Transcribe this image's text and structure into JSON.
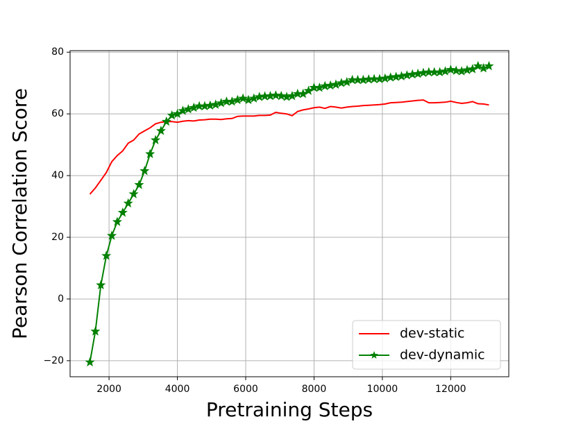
{
  "chart_data": {
    "type": "line",
    "xlabel": "Pretraining Steps",
    "ylabel": "Pearson Correlation Score",
    "x": [
      1440,
      1600,
      1760,
      1920,
      2080,
      2240,
      2400,
      2560,
      2720,
      2880,
      3040,
      3200,
      3360,
      3520,
      3680,
      3840,
      4000,
      4160,
      4320,
      4480,
      4640,
      4800,
      4960,
      5120,
      5280,
      5440,
      5600,
      5760,
      5920,
      6080,
      6240,
      6400,
      6560,
      6720,
      6880,
      7040,
      7200,
      7360,
      7520,
      7680,
      7840,
      8000,
      8160,
      8320,
      8480,
      8640,
      8800,
      8960,
      9120,
      9280,
      9440,
      9600,
      9760,
      9920,
      10080,
      10240,
      10400,
      10560,
      10720,
      10880,
      11040,
      11200,
      11360,
      11520,
      11680,
      11840,
      12000,
      12160,
      12320,
      12480,
      12640,
      12800,
      12960,
      13120
    ],
    "series": [
      {
        "name": "dev-static",
        "color": "#ff0000",
        "marker": "none",
        "values": [
          34,
          36,
          38.5,
          41,
          44.5,
          46.5,
          48,
          50.5,
          51.5,
          53.5,
          54.5,
          55.5,
          56.8,
          57.3,
          57.5,
          57.5,
          57.3,
          57.6,
          57.8,
          57.7,
          58,
          58.1,
          58.3,
          58.3,
          58.2,
          58.4,
          58.5,
          59.2,
          59.3,
          59.3,
          59.3,
          59.5,
          59.5,
          59.6,
          60.5,
          60.2,
          60,
          59.4,
          60.8,
          61.3,
          61.6,
          62,
          62.2,
          61.8,
          62.4,
          62.2,
          61.9,
          62.2,
          62.4,
          62.5,
          62.7,
          62.8,
          62.9,
          63,
          63.2,
          63.6,
          63.7,
          63.8,
          64,
          64.2,
          64.4,
          64.5,
          63.6,
          63.6,
          63.7,
          63.8,
          64.1,
          63.7,
          63.4,
          63.6,
          64,
          63.3,
          63.2,
          62.9
        ]
      },
      {
        "name": "dev-dynamic",
        "color": "#008000",
        "marker": "star",
        "values": [
          -20.5,
          -10.5,
          4.5,
          14,
          20.5,
          25,
          28,
          31,
          34,
          37,
          41.5,
          47,
          51.5,
          54.5,
          57.5,
          59.5,
          60,
          61,
          61.5,
          62,
          62.5,
          62.5,
          62.7,
          63,
          63.5,
          64,
          64,
          64.5,
          65,
          64.5,
          65,
          65.5,
          65.7,
          65.8,
          66,
          65.8,
          65.5,
          65.8,
          66.5,
          66.5,
          67.5,
          68.5,
          68.5,
          69,
          69.2,
          69.5,
          70,
          70.3,
          71,
          71,
          71,
          71.2,
          71.3,
          71.3,
          71.5,
          71.8,
          72,
          72.2,
          72.5,
          72.8,
          73,
          73.3,
          73.5,
          73.5,
          73.5,
          73.8,
          74.3,
          74,
          73.8,
          74.2,
          74.5,
          75.5,
          74.8,
          75.5
        ]
      }
    ],
    "xlim": [
      860,
      13700
    ],
    "ylim": [
      -25.2,
      80.5
    ],
    "xticks": [
      2000,
      4000,
      6000,
      8000,
      10000,
      12000
    ],
    "yticks": [
      {
        "value": -20,
        "label": "−20"
      },
      0,
      20,
      40,
      60,
      80
    ],
    "grid": true,
    "legend": "lower right"
  }
}
